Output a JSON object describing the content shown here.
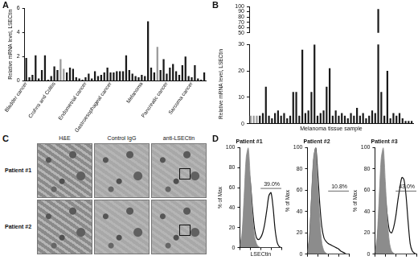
{
  "chart_data": [
    {
      "panel": "A",
      "type": "bar",
      "y_label": "Relative mRNA level, LSECtin",
      "categories": [
        "Bladder cancer",
        null,
        null,
        null,
        null,
        null,
        null,
        null,
        null,
        "Crohns and Colitis",
        null,
        null,
        null,
        null,
        null,
        null,
        null,
        null,
        null,
        "Endometrial cancer",
        null,
        null,
        null,
        null,
        null,
        null,
        null,
        "Gastroesophageal cancer",
        null,
        null,
        null,
        null,
        null,
        null,
        null,
        null,
        null,
        "Melanoma",
        null,
        null,
        null,
        null,
        null,
        null,
        null,
        "Pancreatic cancer",
        null,
        null,
        null,
        null,
        null,
        null,
        null,
        "Sarcoma cancer",
        null,
        null,
        null,
        null
      ],
      "values": [
        1.9,
        0.3,
        0.5,
        2.1,
        0.2,
        0.9,
        2.1,
        0.1,
        0.4,
        1.2,
        0.9,
        1.8,
        1.0,
        0.7,
        1.1,
        1.0,
        0.3,
        0.2,
        0.1,
        0.3,
        0.6,
        0.2,
        0.8,
        0.4,
        0.5,
        0.7,
        1.1,
        0.7,
        0.7,
        0.8,
        0.8,
        0.8,
        2.1,
        0.9,
        0.6,
        0.4,
        0.3,
        0.5,
        0.4,
        4.9,
        1.1,
        0.7,
        2.8,
        0.9,
        1.8,
        0.6,
        1.1,
        1.4,
        0.8,
        0.5,
        1.3,
        2.0,
        0.4,
        0.3,
        1.3,
        0.2,
        0.1,
        0.7
      ],
      "colors": [
        "#1a1a1a",
        "#1a1a1a",
        "#1a1a1a",
        "#1a1a1a",
        "#1a1a1a",
        "#1a1a1a",
        "#1a1a1a",
        "#1a1a1a",
        "#1a1a1a",
        "#1a1a1a",
        "#1a1a1a",
        "#9a9a9a",
        "#9a9a9a",
        "#1a1a1a",
        "#1a1a1a",
        "#1a1a1a",
        "#1a1a1a",
        "#1a1a1a",
        "#1a1a1a",
        "#1a1a1a",
        "#1a1a1a",
        "#1a1a1a",
        "#1a1a1a",
        "#1a1a1a",
        "#1a1a1a",
        "#1a1a1a",
        "#1a1a1a",
        "#1a1a1a",
        "#1a1a1a",
        "#1a1a1a",
        "#1a1a1a",
        "#1a1a1a",
        "#1a1a1a",
        "#1a1a1a",
        "#1a1a1a",
        "#1a1a1a",
        "#1a1a1a",
        "#1a1a1a",
        "#1a1a1a",
        "#1a1a1a",
        "#1a1a1a",
        "#1a1a1a",
        "#9a9a9a",
        "#1a1a1a",
        "#1a1a1a",
        "#1a1a1a",
        "#1a1a1a",
        "#1a1a1a",
        "#1a1a1a",
        "#1a1a1a",
        "#1a1a1a",
        "#1a1a1a",
        "#1a1a1a",
        "#1a1a1a",
        "#1a1a1a",
        "#1a1a1a",
        "#1a1a1a",
        "#1a1a1a"
      ],
      "ylim": [
        0,
        6
      ],
      "yticks": [
        0,
        2,
        4,
        6
      ],
      "grid": false
    },
    {
      "panel": "B",
      "type": "bar",
      "x_label": "Melanoma tissue sample",
      "y_label": "Relative mRNA level, LSECtin",
      "categories": [
        null,
        null,
        null,
        null,
        null,
        null,
        null,
        null,
        null,
        null,
        null,
        null,
        null,
        null,
        null,
        null,
        null,
        null,
        null,
        null,
        null,
        null,
        null,
        null,
        null,
        null,
        null,
        null,
        null,
        null,
        null,
        null,
        null,
        null,
        null,
        null,
        null,
        null,
        null,
        null,
        null,
        null,
        null,
        null,
        null,
        null,
        null,
        null,
        null,
        null,
        null,
        null,
        null,
        null
      ],
      "values": [
        3,
        3,
        3,
        3,
        4,
        14,
        3,
        2,
        4,
        5,
        3,
        4,
        2,
        3,
        12,
        12,
        3,
        28,
        4,
        5,
        12,
        30,
        3,
        4,
        5,
        14,
        21,
        3,
        5,
        3,
        4,
        3,
        2,
        4,
        3,
        6,
        3,
        4,
        2,
        3,
        5,
        4,
        95,
        12,
        3,
        20,
        2,
        4,
        3,
        4,
        2,
        1,
        1,
        1
      ],
      "colors": [
        "#9a9a9a",
        "#9a9a9a",
        "#9a9a9a",
        "#1a1a1a",
        "#1a1a1a",
        "#1a1a1a",
        "#1a1a1a",
        "#1a1a1a",
        "#1a1a1a",
        "#1a1a1a",
        "#1a1a1a",
        "#1a1a1a",
        "#1a1a1a",
        "#1a1a1a",
        "#1a1a1a",
        "#1a1a1a",
        "#1a1a1a",
        "#1a1a1a",
        "#1a1a1a",
        "#1a1a1a",
        "#1a1a1a",
        "#1a1a1a",
        "#1a1a1a",
        "#1a1a1a",
        "#1a1a1a",
        "#1a1a1a",
        "#1a1a1a",
        "#1a1a1a",
        "#1a1a1a",
        "#1a1a1a",
        "#1a1a1a",
        "#1a1a1a",
        "#1a1a1a",
        "#1a1a1a",
        "#1a1a1a",
        "#1a1a1a",
        "#1a1a1a",
        "#1a1a1a",
        "#1a1a1a",
        "#1a1a1a",
        "#1a1a1a",
        "#1a1a1a",
        "#1a1a1a",
        "#1a1a1a",
        "#1a1a1a",
        "#1a1a1a",
        "#1a1a1a",
        "#1a1a1a",
        "#1a1a1a",
        "#1a1a1a",
        "#1a1a1a",
        "#1a1a1a",
        "#1a1a1a",
        "#1a1a1a"
      ],
      "ylim": [
        0,
        100
      ],
      "yticks": [
        0,
        10,
        20,
        30,
        50,
        60,
        70,
        80,
        90,
        100
      ],
      "tick_labels": "y",
      "grid": false
    },
    {
      "panel": "D",
      "type": "line",
      "title": "Patient #1",
      "annotation": "39.0%",
      "x_label": "LSECtin",
      "y_label": "% of Max",
      "log": "x",
      "tick_labels": "y",
      "x": [
        1,
        1.6,
        2.5,
        4,
        6.3,
        10,
        16,
        25,
        40,
        63,
        100,
        160,
        250,
        400,
        630,
        1000,
        1600,
        2500,
        4000,
        6300,
        10000
      ],
      "series": [
        {
          "type": "area",
          "color": "#8c8c8c",
          "values": [
            2,
            15,
            50,
            90,
            100,
            70,
            35,
            12,
            4,
            1,
            0,
            0,
            0,
            0,
            0,
            0,
            0,
            0,
            0,
            0,
            0
          ]
        },
        {
          "type": "line",
          "color": "#111111",
          "values": [
            1,
            8,
            30,
            62,
            78,
            66,
            40,
            20,
            10,
            8,
            10,
            15,
            24,
            38,
            52,
            55,
            40,
            18,
            5,
            1,
            0
          ]
        }
      ],
      "xlim": [
        1,
        10000
      ],
      "xticks": [
        1,
        10,
        100,
        1000,
        10000
      ],
      "ylim": [
        0,
        100
      ],
      "yticks": [
        0,
        20,
        40,
        60,
        80,
        100
      ],
      "grid": false
    },
    {
      "type": "line",
      "title": "Patient #2",
      "annotation": "10.8%",
      "y_label": "% of Max",
      "log": "x",
      "tick_labels": "y",
      "x": [
        1,
        1.6,
        2.5,
        4,
        6.3,
        10,
        16,
        25,
        40,
        63,
        100,
        160,
        250,
        400,
        630,
        1000,
        1600,
        2500,
        4000,
        6300,
        10000
      ],
      "series": [
        {
          "type": "area",
          "color": "#8c8c8c",
          "values": [
            2,
            18,
            55,
            92,
            100,
            65,
            30,
            10,
            3,
            1,
            0,
            0,
            0,
            0,
            0,
            0,
            0,
            0,
            0,
            0,
            0
          ]
        },
        {
          "type": "line",
          "color": "#111111",
          "values": [
            1,
            15,
            52,
            88,
            100,
            75,
            45,
            25,
            15,
            12,
            10,
            9,
            8,
            7,
            6,
            5,
            3,
            2,
            1,
            0,
            0
          ]
        }
      ],
      "xlim": [
        1,
        10000
      ],
      "xticks": [
        1,
        10,
        100,
        1000,
        10000
      ],
      "ylim": [
        0,
        100
      ],
      "yticks": [
        0,
        20,
        40,
        60,
        80,
        100
      ],
      "grid": false
    },
    {
      "type": "line",
      "title": "Patient #3",
      "annotation": "43.0%",
      "y_label": "% of Max",
      "log": "x",
      "tick_labels": "y",
      "x": [
        1,
        1.6,
        2.5,
        4,
        6.3,
        10,
        16,
        25,
        40,
        63,
        100,
        160,
        250,
        400,
        630,
        1000,
        1600,
        2500,
        4000,
        6300,
        10000
      ],
      "series": [
        {
          "type": "area",
          "color": "#8c8c8c",
          "values": [
            2,
            16,
            52,
            90,
            100,
            68,
            32,
            11,
            3,
            1,
            0,
            0,
            0,
            0,
            0,
            0,
            0,
            0,
            0,
            0,
            0
          ]
        },
        {
          "type": "line",
          "color": "#111111",
          "values": [
            1,
            10,
            35,
            60,
            70,
            55,
            35,
            22,
            20,
            25,
            35,
            50,
            62,
            72,
            70,
            55,
            30,
            10,
            3,
            1,
            0
          ]
        }
      ],
      "xlim": [
        1,
        10000
      ],
      "xticks": [
        1,
        10,
        100,
        1000,
        10000
      ],
      "ylim": [
        0,
        100
      ],
      "yticks": [
        0,
        20,
        40,
        60,
        80,
        100
      ],
      "grid": false
    }
  ],
  "panel_c": {
    "panel": "C",
    "columns": [
      "H&E",
      "Control IgG",
      "anti-LSECtin"
    ],
    "rows": [
      "Patient #1",
      "Patient #2"
    ]
  }
}
